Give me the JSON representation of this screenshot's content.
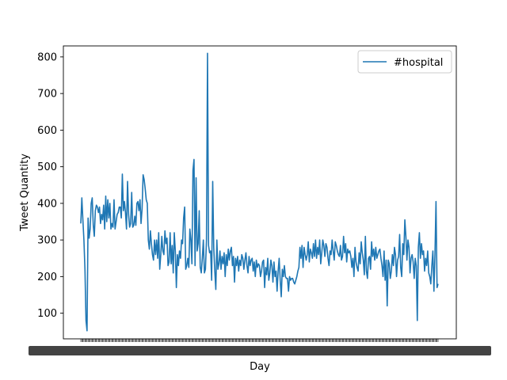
{
  "chart_data": {
    "type": "line",
    "title": "",
    "xlabel": "Day",
    "ylabel": "Tweet Quantity",
    "ylim": [
      30,
      830
    ],
    "yticks": [
      100,
      200,
      300,
      400,
      500,
      600,
      700,
      800
    ],
    "grid": false,
    "legend_position": "top-right",
    "x_tick_labels_note": "",
    "series": [
      {
        "name": "#hospital",
        "color": "#1f77b4",
        "values": [
          345,
          415,
          355,
          300,
          220,
          80,
          52,
          360,
          305,
          330,
          400,
          415,
          340,
          310,
          380,
          395,
          390,
          375,
          390,
          345,
          370,
          355,
          395,
          330,
          420,
          350,
          410,
          360,
          400,
          330,
          345,
          335,
          410,
          330,
          350,
          370,
          375,
          390,
          390,
          360,
          480,
          380,
          405,
          375,
          330,
          460,
          370,
          335,
          345,
          430,
          335,
          340,
          365,
          340,
          400,
          405,
          380,
          410,
          345,
          385,
          478,
          465,
          440,
          410,
          400,
          300,
          275,
          325,
          290,
          260,
          245,
          300,
          260,
          300,
          250,
          320,
          220,
          260,
          310,
          270,
          260,
          325,
          290,
          305,
          230,
          240,
          320,
          235,
          285,
          210,
          320,
          270,
          170,
          260,
          230,
          270,
          250,
          300,
          290,
          360,
          390,
          220,
          230,
          250,
          225,
          330,
          300,
          235,
          490,
          520,
          230,
          470,
          270,
          290,
          380,
          225,
          210,
          250,
          300,
          210,
          220,
          300,
          810,
          285,
          265,
          270,
          190,
          460,
          280,
          215,
          165,
          300,
          220,
          235,
          270,
          220,
          255,
          235,
          265,
          200,
          260,
          230,
          275,
          245,
          270,
          280,
          230,
          255,
          185,
          250,
          230,
          255,
          215,
          245,
          230,
          260,
          250,
          220,
          245,
          265,
          230,
          210,
          255,
          230,
          245,
          250,
          215,
          240,
          200,
          245,
          225,
          235,
          230,
          200,
          215,
          240,
          245,
          170,
          225,
          205,
          250,
          190,
          210,
          245,
          230,
          185,
          240,
          200,
          215,
          160,
          215,
          250,
          190,
          145,
          220,
          200,
          230,
          200,
          195,
          195,
          160,
          200,
          190,
          195,
          195,
          185,
          180,
          190,
          200,
          215,
          225,
          280,
          250,
          285,
          225,
          280,
          260,
          245,
          260,
          295,
          240,
          275,
          265,
          250,
          290,
          255,
          300,
          250,
          280,
          260,
          300,
          235,
          265,
          300,
          285,
          255,
          290,
          280,
          250,
          230,
          270,
          260,
          300,
          270,
          245,
          295,
          285,
          270,
          260,
          255,
          285,
          245,
          255,
          310,
          265,
          290,
          240,
          275,
          265,
          270,
          255,
          225,
          250,
          200,
          280,
          240,
          225,
          215,
          265,
          235,
          295,
          265,
          245,
          205,
          310,
          215,
          195,
          250,
          255,
          220,
          295,
          255,
          275,
          245,
          280,
          250,
          260,
          270,
          275,
          250,
          230,
          200,
          270,
          190,
          245,
          120,
          245,
          235,
          195,
          215,
          260,
          230,
          280,
          260,
          200,
          245,
          255,
          315,
          225,
          200,
          290,
          260,
          355,
          310,
          245,
          300,
          280,
          210,
          250,
          260,
          240,
          195,
          250,
          230,
          80,
          280,
          320,
          250,
          290,
          260,
          270,
          215,
          250,
          230,
          270,
          210,
          200,
          180,
          230,
          270,
          160,
          260,
          405,
          170,
          180
        ]
      }
    ]
  }
}
